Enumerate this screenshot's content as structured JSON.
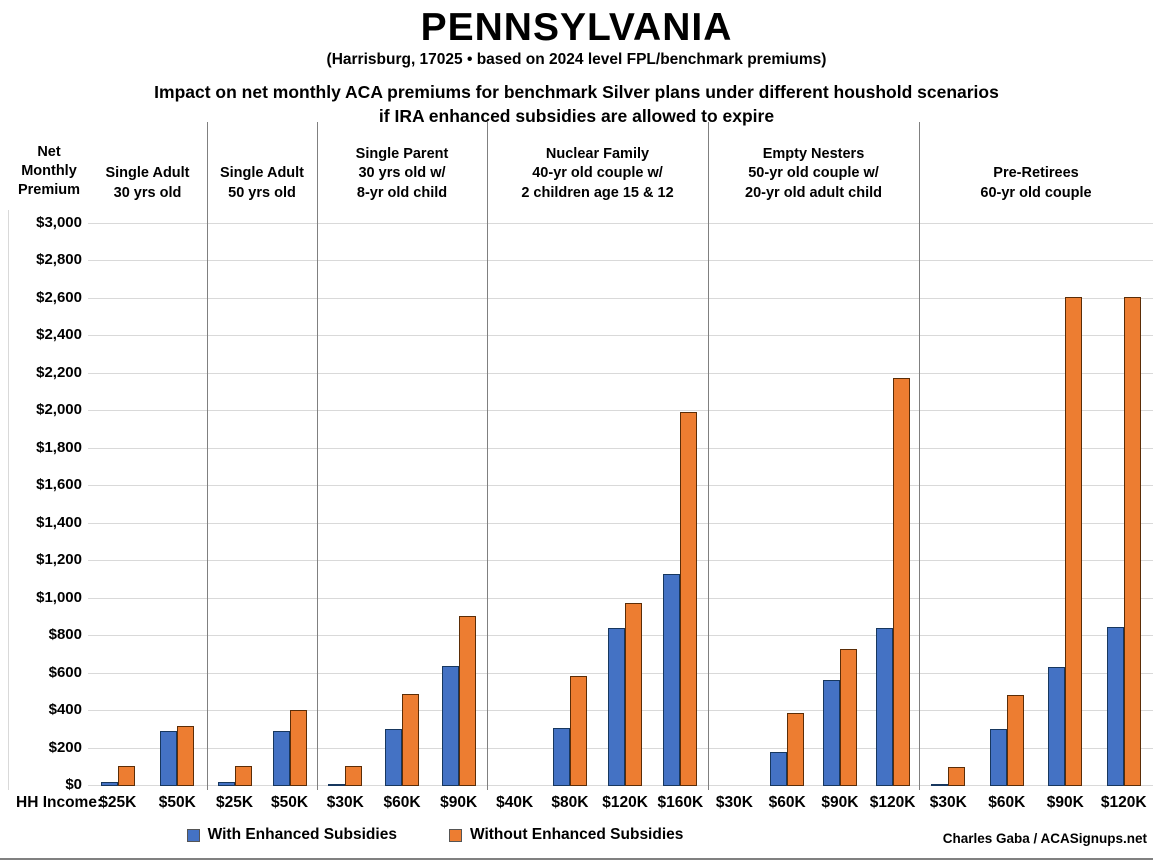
{
  "chart_data": {
    "type": "bar",
    "title": "PENNSYLVANIA",
    "subtitle": "(Harrisburg, 17025 • based on 2024 level FPL/benchmark premiums)",
    "heading_line1": "Impact on net monthly ACA premiums for benchmark Silver plans under different houshold scenarios",
    "heading_line2": "if IRA enhanced subsidies are allowed to expire",
    "y_axis": {
      "label_lines": [
        "Net",
        "Monthly",
        "Premium"
      ],
      "min": 0,
      "max": 3000,
      "step": 200,
      "tick_prefix": "$"
    },
    "x_axis_label": "HH Income:",
    "grid": true,
    "legend_position": "bottom",
    "legend": [
      {
        "name": "With Enhanced Subsidies",
        "color": "#4472C4"
      },
      {
        "name": "Without Enhanced Subsidies",
        "color": "#ED7D31"
      }
    ],
    "credit": "Charles Gaba / ACASignups.net",
    "series_keys": [
      "with",
      "without"
    ],
    "groups": [
      {
        "label_lines": [
          "Single Adult",
          "30 yrs old"
        ],
        "bars": [
          {
            "income": "$25K",
            "with": 20,
            "without": 105
          },
          {
            "income": "$50K",
            "with": 295,
            "without": 320
          }
        ]
      },
      {
        "label_lines": [
          "Single Adult",
          "50 yrs old"
        ],
        "bars": [
          {
            "income": "$25K",
            "with": 20,
            "without": 105
          },
          {
            "income": "$50K",
            "with": 295,
            "without": 405
          }
        ]
      },
      {
        "label_lines": [
          "Single Parent",
          "30 yrs old w/",
          "8-yr old child"
        ],
        "bars": [
          {
            "income": "$30K",
            "with": 5,
            "without": 105
          },
          {
            "income": "$60K",
            "with": 305,
            "without": 490
          },
          {
            "income": "$90K",
            "with": 640,
            "without": 910
          }
        ]
      },
      {
        "label_lines": [
          "Nuclear Family",
          "40-yr old couple w/",
          "2 children age 15 & 12"
        ],
        "bars": [
          {
            "income": "$40K",
            "with": 0,
            "without": 0
          },
          {
            "income": "$80K",
            "with": 310,
            "without": 585
          },
          {
            "income": "$120K",
            "with": 845,
            "without": 975
          },
          {
            "income": "$160K",
            "with": 1130,
            "without": 1995
          }
        ]
      },
      {
        "label_lines": [
          "Empty Nesters",
          "50-yr old couple w/",
          "20-yr old adult child"
        ],
        "bars": [
          {
            "income": "$30K",
            "with": 0,
            "without": 0
          },
          {
            "income": "$60K",
            "with": 180,
            "without": 390
          },
          {
            "income": "$90K",
            "with": 565,
            "without": 730
          },
          {
            "income": "$120K",
            "with": 845,
            "without": 2180
          }
        ]
      },
      {
        "label_lines": [
          "Pre-Retirees",
          "60-yr old couple"
        ],
        "bars": [
          {
            "income": "$30K",
            "with": 10,
            "without": 100
          },
          {
            "income": "$60K",
            "with": 305,
            "without": 485
          },
          {
            "income": "$90K",
            "with": 635,
            "without": 2610
          },
          {
            "income": "$120K",
            "with": 850,
            "without": 2610
          }
        ]
      }
    ]
  }
}
